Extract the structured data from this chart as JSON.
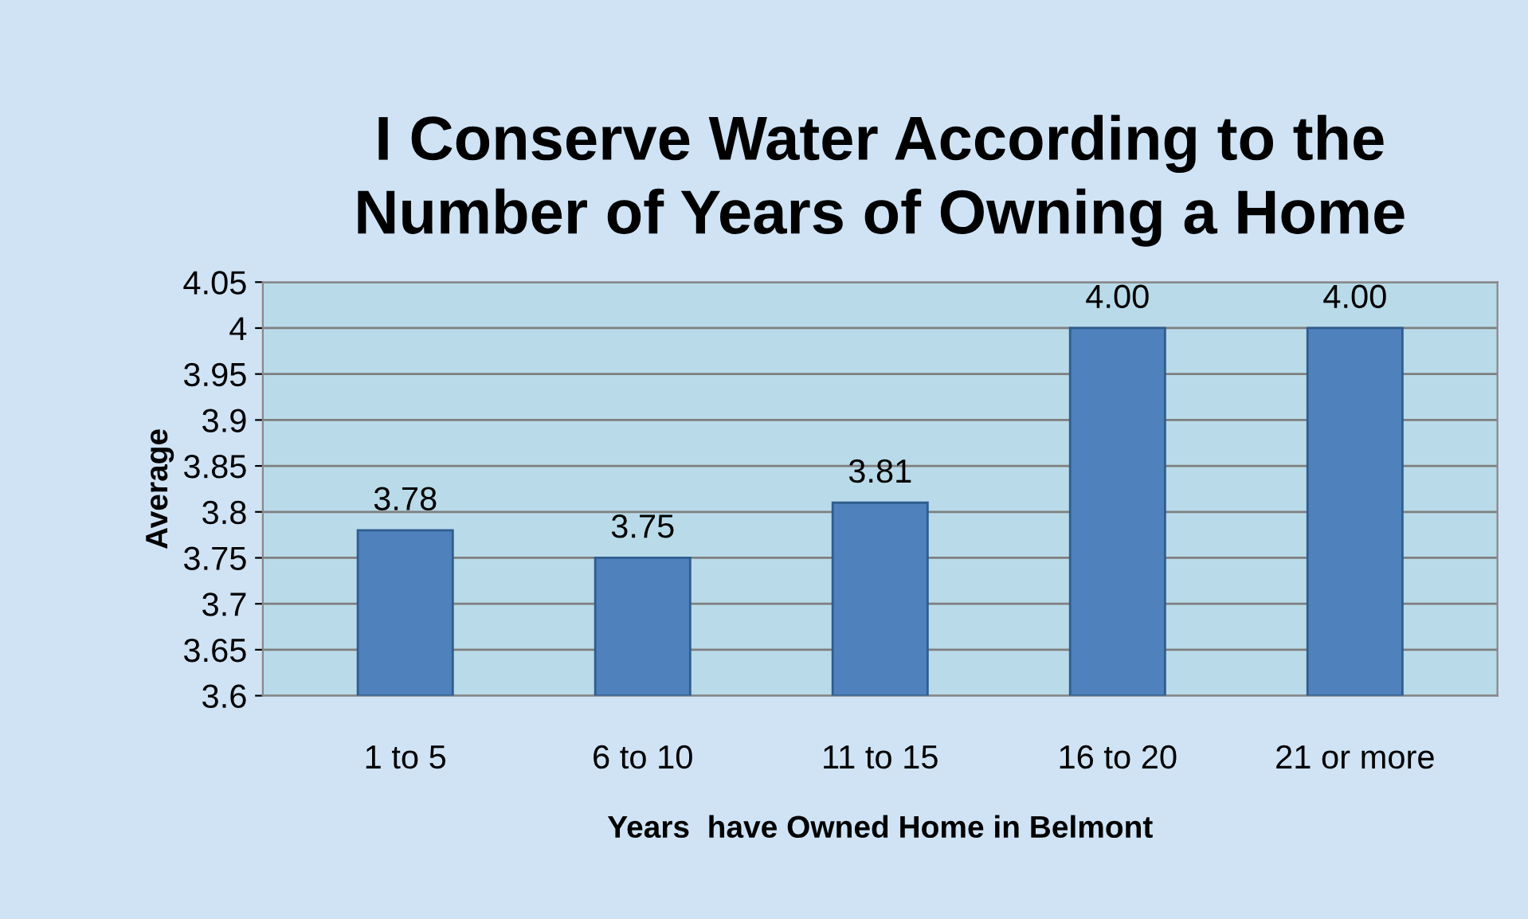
{
  "chart_data": {
    "type": "bar",
    "title": "I Conserve Water According to the\nNumber of Years of Owning a Home",
    "xlabel": "Years  have Owned Home in Belmont",
    "ylabel": "Average",
    "categories": [
      "1 to 5",
      "6 to 10",
      "11 to 15",
      "16 to 20",
      "21 or more"
    ],
    "values": [
      3.78,
      3.75,
      3.81,
      4.0,
      4.0
    ],
    "value_labels": [
      "3.78",
      "3.75",
      "3.81",
      "4.00",
      "4.00"
    ],
    "color": "#4f81bd",
    "ylim": [
      3.6,
      4.05
    ],
    "yticks": [
      3.6,
      3.65,
      3.7,
      3.75,
      3.8,
      3.85,
      3.9,
      3.95,
      4,
      4.05
    ],
    "grid": "y"
  }
}
